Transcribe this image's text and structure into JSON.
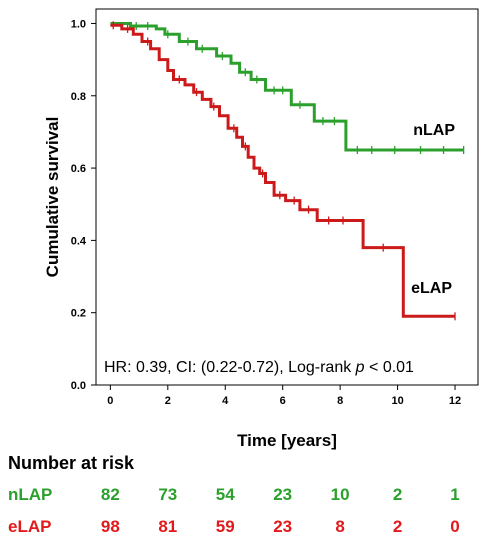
{
  "chart_data": {
    "type": "line",
    "title": "",
    "xlabel": "Time [years]",
    "ylabel": "Cumulative survival",
    "xlim": [
      -0.5,
      12.8
    ],
    "ylim": [
      0.0,
      1.04
    ],
    "xticks": [
      "0",
      "2",
      "4",
      "6",
      "8",
      "10",
      "12"
    ],
    "xtick_values": [
      0,
      2,
      4,
      6,
      8,
      10,
      12
    ],
    "yticks": [
      "0.0",
      "0.2",
      "0.4",
      "0.6",
      "0.8",
      "1.0"
    ],
    "ytick_values": [
      0.0,
      0.2,
      0.4,
      0.6,
      0.8,
      1.0
    ],
    "grid": false,
    "annotation": {
      "prefix": "HR: 0.39, CI: (0.22-0.72), Log-rank ",
      "italic": "p",
      "suffix": " < 0.01"
    },
    "series": [
      {
        "name": "nLAP",
        "color": "#2ca02c",
        "step_x": [
          0,
          0.7,
          1.6,
          1.9,
          2.4,
          3.0,
          3.7,
          4.2,
          4.5,
          4.9,
          5.4,
          6.3,
          7.1,
          8.2,
          12.3
        ],
        "step_y": [
          1.0,
          0.993,
          0.985,
          0.97,
          0.95,
          0.93,
          0.91,
          0.89,
          0.865,
          0.845,
          0.815,
          0.775,
          0.73,
          0.65,
          0.65
        ],
        "censor_x": [
          0.9,
          1.3,
          2.0,
          2.7,
          3.2,
          3.9,
          4.7,
          5.1,
          5.7,
          6.0,
          6.6,
          7.4,
          7.8,
          8.6,
          9.1,
          9.9,
          10.8,
          11.6,
          12.3
        ],
        "censor_y": [
          0.993,
          0.993,
          0.97,
          0.95,
          0.93,
          0.91,
          0.865,
          0.845,
          0.815,
          0.815,
          0.775,
          0.73,
          0.73,
          0.65,
          0.65,
          0.65,
          0.65,
          0.65,
          0.65
        ]
      },
      {
        "name": "eLAP",
        "color": "#cc1a1a",
        "step_x": [
          0,
          0.4,
          0.8,
          1.1,
          1.4,
          1.7,
          2.0,
          2.2,
          2.6,
          2.9,
          3.2,
          3.5,
          3.8,
          4.1,
          4.4,
          4.6,
          4.8,
          5.0,
          5.2,
          5.4,
          5.7,
          6.1,
          6.6,
          7.2,
          8.8,
          10.2,
          12.0
        ],
        "step_y": [
          0.995,
          0.985,
          0.97,
          0.95,
          0.93,
          0.9,
          0.87,
          0.845,
          0.83,
          0.81,
          0.79,
          0.77,
          0.745,
          0.71,
          0.685,
          0.66,
          0.63,
          0.6,
          0.585,
          0.56,
          0.525,
          0.51,
          0.485,
          0.455,
          0.38,
          0.19,
          0.19
        ],
        "censor_x": [
          0.1,
          0.6,
          1.3,
          2.4,
          3.0,
          3.6,
          4.3,
          4.7,
          5.3,
          5.9,
          6.4,
          6.9,
          7.6,
          8.1,
          9.5,
          12.0
        ],
        "censor_y": [
          0.995,
          0.985,
          0.95,
          0.845,
          0.81,
          0.77,
          0.71,
          0.66,
          0.585,
          0.525,
          0.51,
          0.485,
          0.455,
          0.455,
          0.38,
          0.19
        ]
      }
    ],
    "risk_table": {
      "title": "Number at risk",
      "rows": [
        {
          "label": "nLAP",
          "color": "#2ca02c",
          "values": [
            "82",
            "73",
            "54",
            "23",
            "10",
            "2",
            "1"
          ]
        },
        {
          "label": "eLAP",
          "color": "#e31a1c",
          "values": [
            "98",
            "81",
            "59",
            "23",
            "8",
            "2",
            "0"
          ]
        }
      ]
    }
  }
}
